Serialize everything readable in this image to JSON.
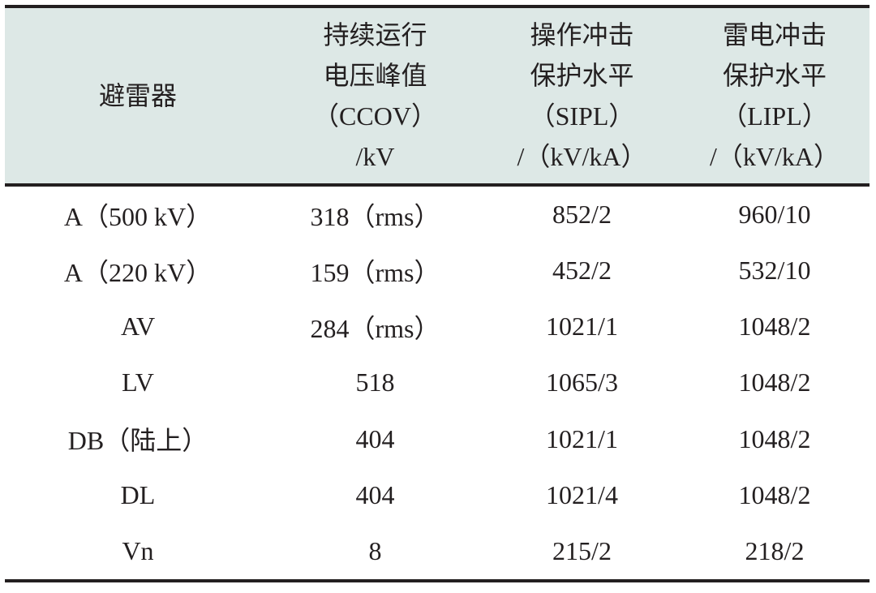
{
  "table": {
    "header": [
      [
        "避雷器"
      ],
      [
        "持续运行",
        "电压峰值",
        "（CCOV）",
        "/kV"
      ],
      [
        "操作冲击",
        "保护水平",
        "（SIPL）",
        "/（kV/kA）"
      ],
      [
        "雷电冲击",
        "保护水平",
        "（LIPL）",
        "/（kV/kA）"
      ]
    ],
    "rows": [
      [
        "A（500 kV）",
        "318（rms）",
        "852/2",
        "960/10"
      ],
      [
        "A（220 kV）",
        "159（rms）",
        "452/2",
        "532/10"
      ],
      [
        "AV",
        "284（rms）",
        "1021/1",
        "1048/2"
      ],
      [
        "LV",
        "518",
        "1065/3",
        "1048/2"
      ],
      [
        "DB（陆上）",
        "404",
        "1021/1",
        "1048/2"
      ],
      [
        "DL",
        "404",
        "1021/4",
        "1048/2"
      ],
      [
        "Vn",
        "8",
        "215/2",
        "218/2"
      ]
    ]
  }
}
